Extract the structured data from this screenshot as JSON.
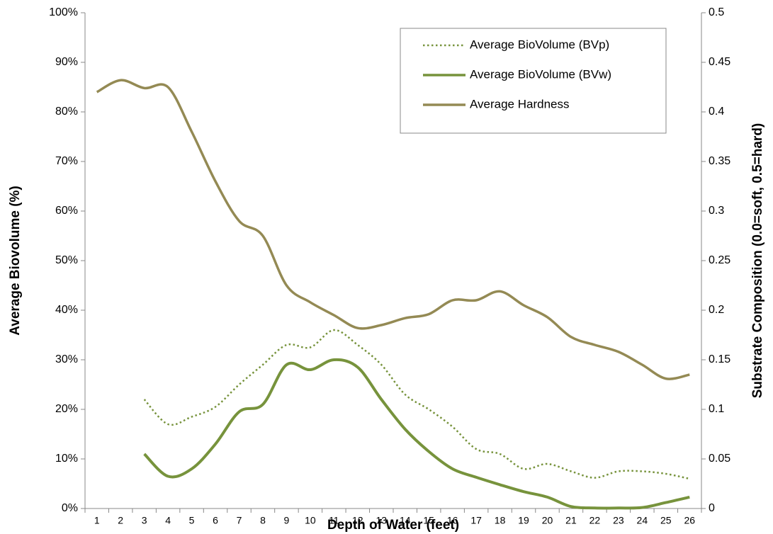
{
  "chart_data": {
    "type": "line",
    "x_label": "Depth of Water (feet)",
    "y_label": "Average Biovolume (%)",
    "y2_label": "Substrate Composition (0.0=soft, 0.5=hard)",
    "categories": [
      "1",
      "2",
      "3",
      "4",
      "5",
      "6",
      "7",
      "8",
      "9",
      "10",
      "11",
      "12",
      "13",
      "14",
      "15",
      "16",
      "17",
      "18",
      "19",
      "20",
      "21",
      "22",
      "23",
      "24",
      "25",
      "26"
    ],
    "ylim": [
      0,
      100
    ],
    "yticks": [
      {
        "value": 0,
        "label": "0%"
      },
      {
        "value": 10,
        "label": "10%"
      },
      {
        "value": 20,
        "label": "20%"
      },
      {
        "value": 30,
        "label": "30%"
      },
      {
        "value": 40,
        "label": "40%"
      },
      {
        "value": 50,
        "label": "50%"
      },
      {
        "value": 60,
        "label": "60%"
      },
      {
        "value": 70,
        "label": "70%"
      },
      {
        "value": 80,
        "label": "80%"
      },
      {
        "value": 90,
        "label": "90%"
      },
      {
        "value": 100,
        "label": "100%"
      }
    ],
    "y2lim": [
      0,
      0.5
    ],
    "y2ticks": [
      0,
      0.05,
      0.1,
      0.15,
      0.2,
      0.25,
      0.3,
      0.35,
      0.4,
      0.45,
      0.5
    ],
    "legend": "top right",
    "series": [
      {
        "name": "Average BioVolume (BVp)",
        "color": "#77933c",
        "dash": "dotted",
        "values": [
          null,
          null,
          22,
          17,
          18.5,
          20.5,
          25,
          29,
          33,
          32.5,
          36,
          33,
          29,
          23,
          20,
          16.5,
          12,
          11,
          8,
          9,
          7.5,
          6.2,
          7.5,
          7.5,
          7,
          6
        ]
      },
      {
        "name": "Average BioVolume (BVw)",
        "color": "#77933c",
        "values": [
          null,
          null,
          11,
          6.5,
          8,
          13,
          19.5,
          21,
          29,
          28,
          30,
          28.5,
          22,
          16,
          11.5,
          8,
          6.3,
          4.8,
          3.4,
          2.3,
          0.4,
          0.1,
          0.1,
          0.2,
          1.2,
          2.3
        ]
      },
      {
        "name": "Average Hardness",
        "color": "#948a54",
        "axis": "y2",
        "values": [
          0.42,
          0.432,
          0.424,
          0.425,
          0.38,
          0.33,
          0.29,
          0.275,
          0.225,
          0.208,
          0.195,
          0.182,
          0.185,
          0.192,
          0.196,
          0.21,
          0.21,
          0.219,
          0.205,
          0.193,
          0.173,
          0.165,
          0.158,
          0.145,
          0.131,
          0.135
        ]
      }
    ]
  }
}
